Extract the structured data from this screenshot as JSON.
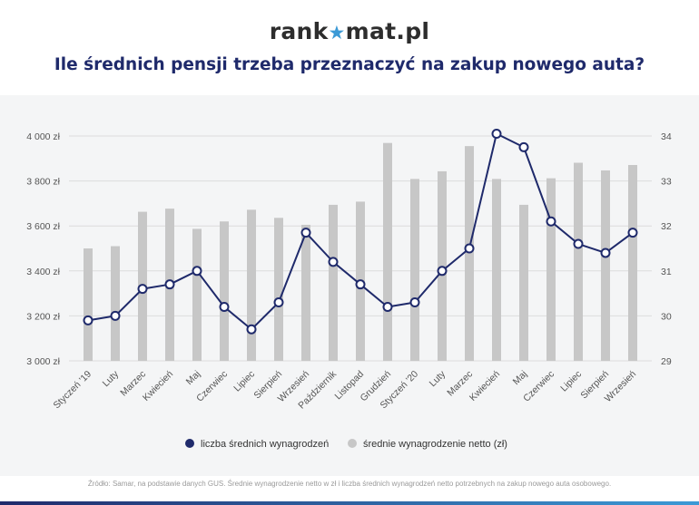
{
  "logo": {
    "left": "rank",
    "right": "mat.pl",
    "star": "★"
  },
  "title": "Ile średnich pensji trzeba przeznaczyć na zakup nowego auta?",
  "source": "Źródło: Samar, na podstawie danych GUS. Średnie wynagrodzenie netto w zł i liczba średnich wynagrodzeń netto potrzebnych na zakup nowego auta osobowego.",
  "colors": {
    "line": "#1f2a6b",
    "bar": "#c7c7c7",
    "marker_fill": "#ffffff",
    "title": "#1f2a6b",
    "axis_text": "#555555"
  },
  "chart_data": {
    "type": "bar",
    "categories": [
      "Styczeń '19",
      "Luty",
      "Marzec",
      "Kwiecień",
      "Maj",
      "Czerwiec",
      "Lipiec",
      "Sierpień",
      "Wrzesień",
      "Październik",
      "Listopad",
      "Grudzień",
      "Styczeń '20",
      "Luty",
      "Marzec",
      "Kwiecień",
      "Maj",
      "Czerwiec",
      "Lipiec",
      "Sierpień",
      "Wrzesień"
    ],
    "series": [
      {
        "name": "średnie wynagrodzenie netto (zł)",
        "type": "bar",
        "axis": "left",
        "values": [
          3500,
          3510,
          3663,
          3677,
          3587,
          3620,
          3672,
          3636,
          3605,
          3694,
          3708,
          3969,
          3809,
          3843,
          3955,
          3809,
          3694,
          3812,
          3881,
          3847,
          3871
        ]
      },
      {
        "name": "liczba średnich wynagrodzeń",
        "type": "line",
        "axis": "right",
        "values": [
          29.9,
          30.0,
          30.6,
          30.7,
          31.0,
          30.2,
          29.7,
          30.3,
          31.85,
          31.2,
          30.7,
          30.2,
          30.3,
          31.0,
          31.5,
          34.05,
          33.75,
          32.1,
          31.6,
          31.4,
          31.85
        ]
      }
    ],
    "y_left": {
      "min": 3000,
      "max": 4000,
      "ticks": [
        "3 000 zł",
        "3 200 zł",
        "3 400 zł",
        "3 600 zł",
        "3 800 zł",
        "4 000 zł"
      ]
    },
    "y_right": {
      "min": 29,
      "max": 34,
      "ticks": [
        "29",
        "30",
        "31",
        "32",
        "33",
        "34"
      ]
    },
    "grid": true,
    "legend": {
      "position": "bottom-center",
      "items": [
        "liczba średnich wynagrodzeń",
        "średnie wynagrodzenie netto (zł)"
      ]
    }
  }
}
